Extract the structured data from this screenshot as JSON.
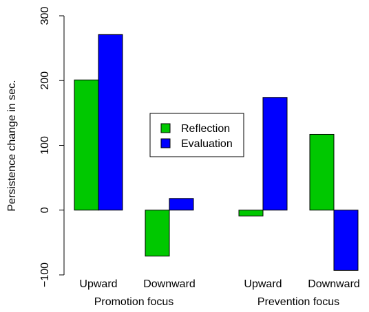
{
  "chart_data": {
    "type": "bar",
    "ylabel": "Persistence change in sec.",
    "ylim": [
      -100,
      300
    ],
    "yticks": [
      -100,
      0,
      100,
      200,
      300
    ],
    "groups": [
      {
        "label": "Promotion focus",
        "categories": [
          "Upward",
          "Downward"
        ]
      },
      {
        "label": "Prevention focus",
        "categories": [
          "Upward",
          "Downward"
        ]
      }
    ],
    "categories": [
      "Upward",
      "Downward",
      "Upward",
      "Downward"
    ],
    "series": [
      {
        "name": "Reflection",
        "color": "#00c800",
        "values": [
          201,
          -71,
          -9,
          117
        ]
      },
      {
        "name": "Evaluation",
        "color": "#0000ff",
        "values": [
          271,
          18,
          174,
          -93
        ]
      }
    ],
    "legend_position": "center",
    "grid": false
  }
}
